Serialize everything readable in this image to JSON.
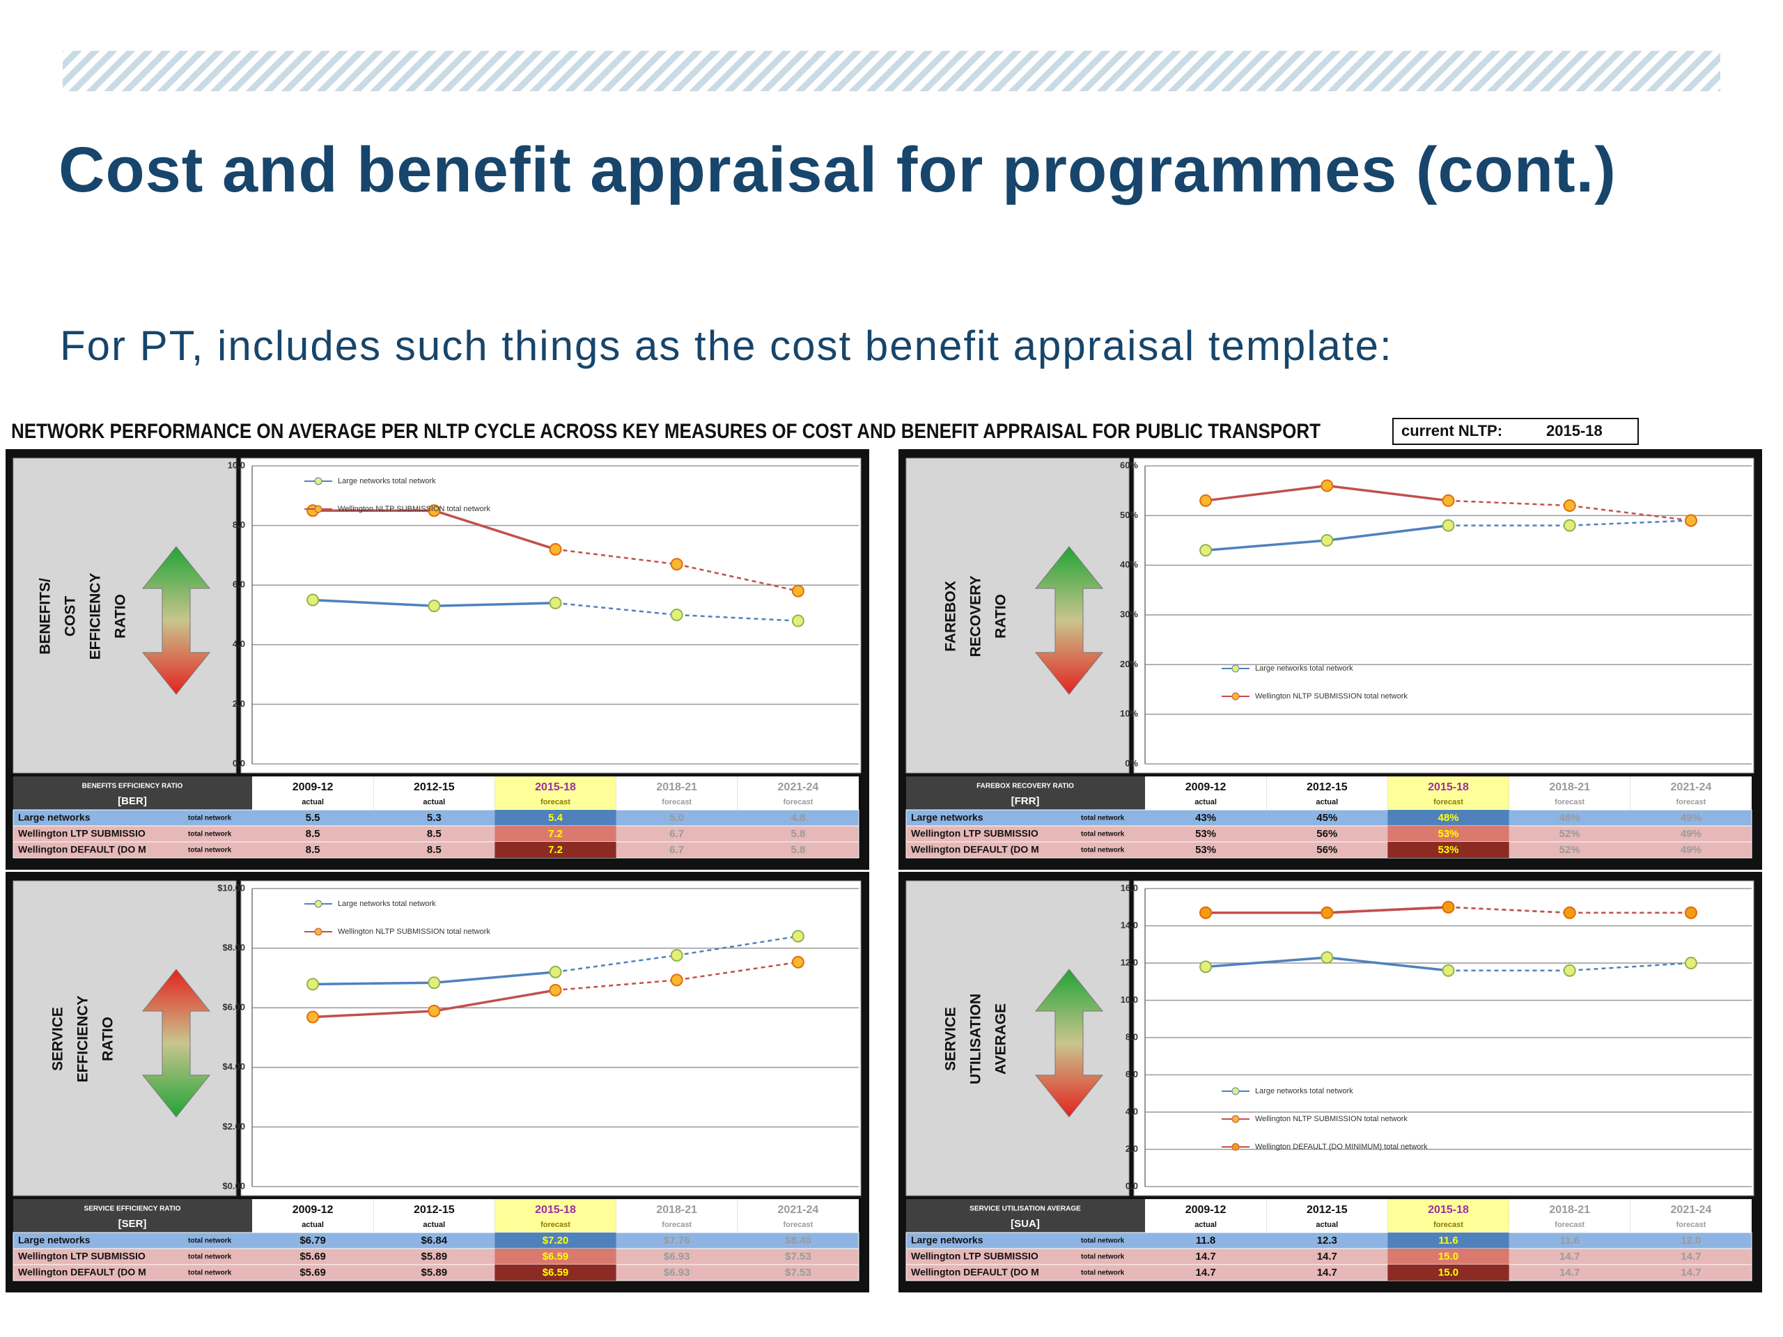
{
  "header": {
    "title": "Cost and benefit appraisal for programmes (cont.)",
    "subtitle": "For PT, includes such things as the cost benefit appraisal template:"
  },
  "template": {
    "title": "NETWORK PERFORMANCE ON AVERAGE PER NLTP CYCLE ACROSS KEY MEASURES OF COST AND BENEFIT APPRAISAL FOR PUBLIC TRANSPORT",
    "current_label": "current NLTP:",
    "current_value": "2015-18"
  },
  "chart_data": [
    {
      "type": "line",
      "side_label": [
        "BENEFITS/",
        "COST",
        "EFFICIENCY",
        "RATIO"
      ],
      "arrow_colors": [
        "#22a336",
        "#e3231f"
      ],
      "categories": [
        "2009-12",
        "2012-15",
        "2015-18",
        "2018-21",
        "2021-24"
      ],
      "ylim": [
        0,
        10
      ],
      "yticks": [
        {
          "value": 0,
          "label": "0.0"
        },
        {
          "value": 2,
          "label": "2.0"
        },
        {
          "value": 4,
          "label": "4.0"
        },
        {
          "value": 6,
          "label": "6.0"
        },
        {
          "value": 8,
          "label": "8.0"
        },
        {
          "value": 10,
          "label": "10.0"
        }
      ],
      "grid": true,
      "legend": "upper left",
      "series": [
        {
          "name": "Large networks total network",
          "color": "#4f81bd",
          "marker_color": "#e4ef7a",
          "values": [
            5.5,
            5.3,
            5.4,
            5,
            4.8
          ]
        },
        {
          "name": "Wellington NLTP SUBMISSION total network",
          "color": "#c0504d",
          "marker_color": "#f7b731",
          "values": [
            8.5,
            8.5,
            7.2,
            6.7,
            5.8
          ]
        }
      ],
      "table": {
        "title": "BENEFITS EFFICIENCY RATIO",
        "code": "[BER]",
        "periods": [
          "actual",
          "actual",
          "forecast",
          "forecast",
          "forecast"
        ],
        "rows": [
          {
            "name": "Large networks",
            "unit": "total network",
            "cells": [
              "5.5",
              "5.3",
              "5.4",
              "5.0",
              "4.8"
            ]
          },
          {
            "name": "Wellington LTP SUBMISSIO",
            "unit": "total network",
            "cells": [
              "8.5",
              "8.5",
              "7.2",
              "6.7",
              "5.8"
            ]
          },
          {
            "name": "Wellington DEFAULT (DO M",
            "unit": "total network",
            "cells": [
              "8.5",
              "8.5",
              "7.2",
              "6.7",
              "5.8"
            ]
          }
        ]
      }
    },
    {
      "type": "line",
      "side_label": [
        "FAREBOX",
        "RECOVERY",
        "RATIO"
      ],
      "arrow_colors": [
        "#22a336",
        "#e3231f"
      ],
      "categories": [
        "2009-12",
        "2012-15",
        "2015-18",
        "2018-21",
        "2021-24"
      ],
      "ylim": [
        0,
        60
      ],
      "yticks": [
        {
          "value": 0,
          "label": "0%"
        },
        {
          "value": 10,
          "label": "10%"
        },
        {
          "value": 20,
          "label": "20%"
        },
        {
          "value": 30,
          "label": "30%"
        },
        {
          "value": 40,
          "label": "40%"
        },
        {
          "value": 50,
          "label": "50%"
        },
        {
          "value": 60,
          "label": "60%"
        }
      ],
      "grid": true,
      "legend": "lower left",
      "series": [
        {
          "name": "Large networks total network",
          "color": "#4f81bd",
          "marker_color": "#e4ef7a",
          "values": [
            43,
            45,
            48,
            48,
            49
          ]
        },
        {
          "name": "Wellington NLTP SUBMISSION total network",
          "color": "#c0504d",
          "marker_color": "#f7b731",
          "values": [
            53,
            56,
            53,
            52,
            49
          ]
        }
      ],
      "table": {
        "title": "FAREBOX RECOVERY RATIO",
        "code": "[FRR]",
        "periods": [
          "actual",
          "actual",
          "forecast",
          "forecast",
          "forecast"
        ],
        "rows": [
          {
            "name": "Large networks",
            "unit": "total network",
            "cells": [
              "43%",
              "45%",
              "48%",
              "48%",
              "49%"
            ]
          },
          {
            "name": "Wellington LTP SUBMISSIO",
            "unit": "total network",
            "cells": [
              "53%",
              "56%",
              "53%",
              "52%",
              "49%"
            ]
          },
          {
            "name": "Wellington DEFAULT (DO M",
            "unit": "total network",
            "cells": [
              "53%",
              "56%",
              "53%",
              "52%",
              "49%"
            ]
          }
        ]
      }
    },
    {
      "type": "line",
      "side_label": [
        "SERVICE",
        "EFFICIENCY",
        "RATIO"
      ],
      "arrow_colors": [
        "#e3231f",
        "#22a336"
      ],
      "categories": [
        "2009-12",
        "2012-15",
        "2015-18",
        "2018-21",
        "2021-24"
      ],
      "ylim": [
        0,
        10
      ],
      "yticks": [
        {
          "value": 0,
          "label": "$0.00"
        },
        {
          "value": 2,
          "label": "$2.00"
        },
        {
          "value": 4,
          "label": "$4.00"
        },
        {
          "value": 6,
          "label": "$6.00"
        },
        {
          "value": 8,
          "label": "$8.00"
        },
        {
          "value": 10,
          "label": "$10.00"
        }
      ],
      "grid": true,
      "legend": "upper left",
      "series": [
        {
          "name": "Large networks total network",
          "color": "#4f81bd",
          "marker_color": "#e4ef7a",
          "values": [
            6.79,
            6.84,
            7.2,
            7.76,
            8.4
          ]
        },
        {
          "name": "Wellington NLTP SUBMISSION total network",
          "color": "#c0504d",
          "marker_color": "#f7b731",
          "values": [
            5.69,
            5.89,
            6.59,
            6.93,
            7.53
          ]
        }
      ],
      "table": {
        "title": "SERVICE EFFICIENCY RATIO",
        "code": "[SER]",
        "periods": [
          "actual",
          "actual",
          "forecast",
          "forecast",
          "forecast"
        ],
        "rows": [
          {
            "name": "Large networks",
            "unit": "total network",
            "cells": [
              "$6.79",
              "$6.84",
              "$7.20",
              "$7.76",
              "$8.40"
            ]
          },
          {
            "name": "Wellington LTP SUBMISSIO",
            "unit": "total network",
            "cells": [
              "$5.69",
              "$5.89",
              "$6.59",
              "$6.93",
              "$7.53"
            ]
          },
          {
            "name": "Wellington DEFAULT (DO M",
            "unit": "total network",
            "cells": [
              "$5.69",
              "$5.89",
              "$6.59",
              "$6.93",
              "$7.53"
            ]
          }
        ]
      }
    },
    {
      "type": "line",
      "side_label": [
        "SERVICE",
        "UTILISATION",
        "AVERAGE"
      ],
      "arrow_colors": [
        "#22a336",
        "#e3231f"
      ],
      "categories": [
        "2009-12",
        "2012-15",
        "2015-18",
        "2018-21",
        "2021-24"
      ],
      "ylim": [
        0,
        16
      ],
      "yticks": [
        {
          "value": 0,
          "label": "0.0"
        },
        {
          "value": 2,
          "label": "2.0"
        },
        {
          "value": 4,
          "label": "4.0"
        },
        {
          "value": 6,
          "label": "6.0"
        },
        {
          "value": 8,
          "label": "8.0"
        },
        {
          "value": 10,
          "label": "10.0"
        },
        {
          "value": 12,
          "label": "12.0"
        },
        {
          "value": 14,
          "label": "14.0"
        },
        {
          "value": 16,
          "label": "16.0"
        }
      ],
      "grid": true,
      "legend": "lower left",
      "series": [
        {
          "name": "Large networks total network",
          "color": "#4f81bd",
          "marker_color": "#e4ef7a",
          "values": [
            11.8,
            12.3,
            11.6,
            11.6,
            12
          ]
        },
        {
          "name": "Wellington NLTP SUBMISSION total network",
          "color": "#c0504d",
          "marker_color": "#f7b731",
          "values": [
            14.7,
            14.7,
            15,
            14.7,
            14.7
          ]
        },
        {
          "name": "Wellington DEFAULT (DO MINIMUM) total network",
          "color": "#c0504d",
          "marker_color": "#f39c12",
          "values": [
            14.7,
            14.7,
            15,
            14.7,
            14.7
          ]
        }
      ],
      "table": {
        "title": "SERVICE UTILISATION AVERAGE",
        "code": "[SUA]",
        "periods": [
          "actual",
          "actual",
          "forecast",
          "forecast",
          "forecast"
        ],
        "rows": [
          {
            "name": "Large networks",
            "unit": "total network",
            "cells": [
              "11.8",
              "12.3",
              "11.6",
              "11.6",
              "12.0"
            ]
          },
          {
            "name": "Wellington LTP SUBMISSIO",
            "unit": "total network",
            "cells": [
              "14.7",
              "14.7",
              "15.0",
              "14.7",
              "14.7"
            ]
          },
          {
            "name": "Wellington DEFAULT (DO M",
            "unit": "total network",
            "cells": [
              "14.7",
              "14.7",
              "15.0",
              "14.7",
              "14.7"
            ]
          }
        ]
      }
    }
  ]
}
